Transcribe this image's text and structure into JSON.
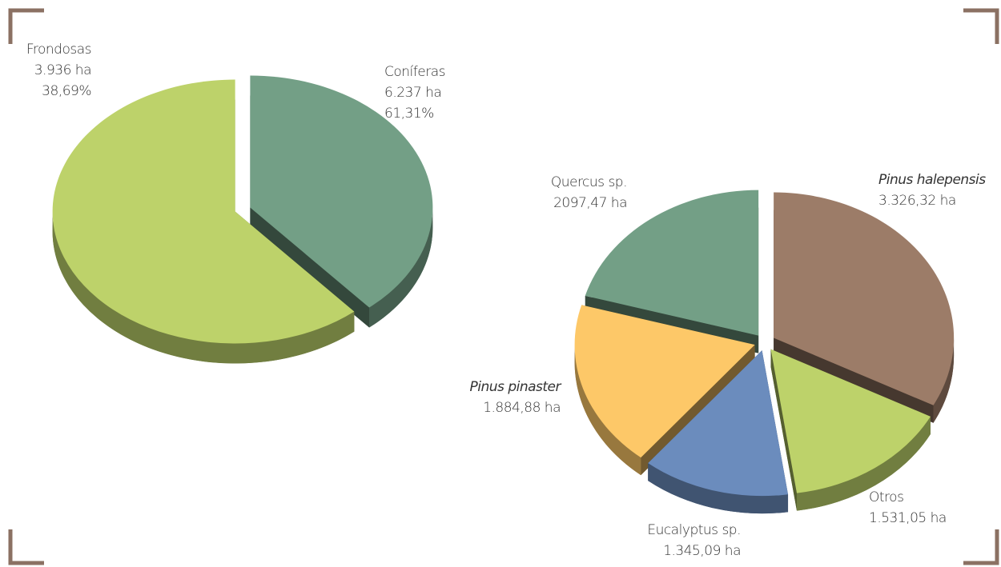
{
  "chart_data": [
    {
      "type": "pie",
      "categories": [
        "Frondosas",
        "Coníferas"
      ],
      "values": [
        3936,
        6237
      ],
      "value_labels": [
        "3.936 ha",
        "6.237 ha"
      ],
      "percent_labels": [
        "38,69%",
        "61,31%"
      ],
      "colors": [
        "#739f86",
        "#bdd26a"
      ]
    },
    {
      "type": "pie",
      "categories": [
        "Pinus halepensis",
        "Otros",
        "Eucalyptus sp.",
        "Pinus pinaster",
        "Quercus sp."
      ],
      "values": [
        3326.32,
        1531.05,
        1345.09,
        1884.88,
        2097.47
      ],
      "value_labels": [
        "3.326,32 ha",
        "1.531,05 ha",
        "1.345,09 ha",
        "1.884,88 ha",
        "2097,47 ha"
      ],
      "colors": [
        "#9c7c68",
        "#bdd26a",
        "#6b8cbd",
        "#fdc868",
        "#739f86"
      ]
    }
  ]
}
